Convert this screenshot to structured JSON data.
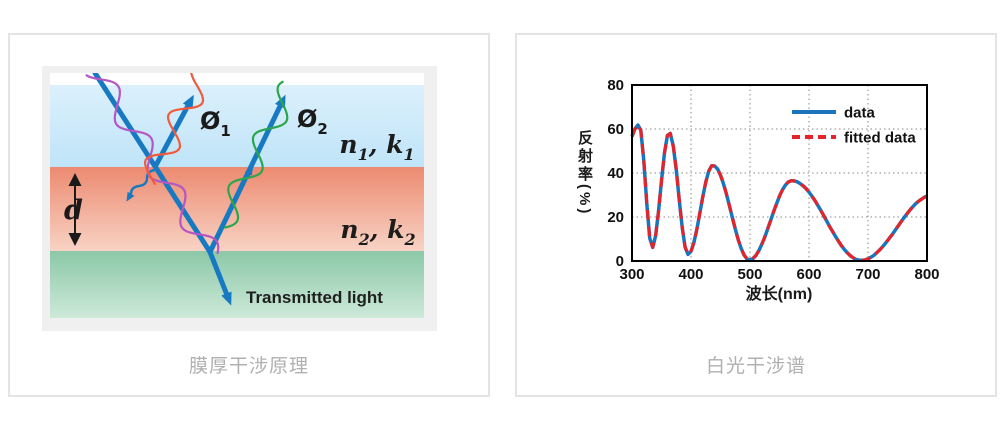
{
  "page": {
    "background": "#ffffff"
  },
  "left_panel": {
    "caption": "膜厚干涉原理",
    "diagram": {
      "phi1": {
        "base": "Ø",
        "sub": "1"
      },
      "phi2": {
        "base": "Ø",
        "sub": "2"
      },
      "layer1_label": {
        "p1": "n",
        "s1": "1",
        "p2": ", k",
        "s2": "1"
      },
      "layer2_label": {
        "p1": "n",
        "s1": "2",
        "p2": ", k",
        "s2": "2"
      },
      "thickness_label": "d",
      "transmitted_label": "Transmitted light",
      "colors": {
        "medium1_top": "#dcf0fc",
        "medium1_bottom": "#bfe4f8",
        "film_top": "#ec8a70",
        "film_bottom": "#f8d3c4",
        "substrate_top": "#8bc8a7",
        "substrate_bottom": "#cde9d9",
        "ray": "#1779c1",
        "wave_incident": "#b457c5",
        "wave_reflect1": "#f15b3b",
        "wave_reflect2": "#2aa64d"
      }
    }
  },
  "right_panel": {
    "caption": "白光干涉谱",
    "panel_bg": "#ece7ba"
  },
  "chart_data": {
    "type": "line",
    "title": "",
    "xlabel": "波长(nm)",
    "ylabel": "反射率(%)",
    "xlim": [
      300,
      800
    ],
    "ylim": [
      0,
      80
    ],
    "xticks": [
      300,
      400,
      500,
      600,
      700,
      800
    ],
    "yticks": [
      0,
      20,
      40,
      60,
      80
    ],
    "grid": true,
    "legend_position": "upper right",
    "x": [
      300,
      305,
      310,
      315,
      320,
      325,
      330,
      335,
      340,
      345,
      350,
      355,
      360,
      365,
      370,
      375,
      380,
      385,
      390,
      395,
      400,
      405,
      410,
      415,
      420,
      425,
      430,
      435,
      440,
      445,
      450,
      455,
      460,
      465,
      470,
      475,
      480,
      485,
      490,
      495,
      500,
      505,
      510,
      515,
      520,
      525,
      530,
      535,
      540,
      545,
      550,
      555,
      560,
      565,
      570,
      575,
      580,
      585,
      590,
      595,
      600,
      605,
      610,
      615,
      620,
      625,
      630,
      635,
      640,
      645,
      650,
      655,
      660,
      665,
      670,
      675,
      680,
      685,
      690,
      695,
      700,
      705,
      710,
      715,
      720,
      725,
      730,
      735,
      740,
      745,
      750,
      755,
      760,
      765,
      770,
      775,
      780,
      785,
      790,
      795,
      800
    ],
    "series": [
      {
        "name": "data",
        "color": "#1b75bc",
        "style": "solid",
        "values": [
          56.6,
          60.1,
          61.8,
          59.5,
          45.6,
          26.1,
          10.4,
          6.2,
          11.4,
          22.5,
          36.5,
          49.2,
          57.1,
          58.0,
          52.2,
          41.3,
          28.0,
          15.3,
          6.3,
          3.0,
          4.4,
          8.4,
          14.5,
          21.7,
          29.2,
          35.9,
          40.8,
          43.3,
          43.2,
          41.8,
          39.0,
          35.2,
          30.5,
          25.3,
          19.8,
          14.5,
          9.7,
          5.7,
          2.7,
          0.9,
          0.5,
          1.1,
          2.5,
          4.7,
          7.6,
          10.9,
          14.6,
          18.5,
          22.4,
          26.1,
          29.5,
          32.3,
          34.5,
          35.9,
          36.5,
          36.4,
          36.0,
          35.2,
          34.2,
          32.9,
          31.3,
          29.5,
          27.5,
          25.3,
          23.0,
          20.6,
          18.2,
          15.7,
          13.4,
          11.1,
          9.0,
          7.0,
          5.2,
          3.7,
          2.4,
          1.4,
          0.7,
          0.4,
          0.3,
          0.5,
          1.0,
          1.7,
          2.6,
          3.8,
          5.1,
          6.6,
          8.2,
          9.9,
          11.7,
          13.6,
          15.5,
          17.4,
          19.3,
          21.1,
          22.8,
          24.4,
          25.8,
          27.0,
          28.0,
          28.9,
          29.5
        ]
      },
      {
        "name": "fitted data",
        "color": "#e62329",
        "style": "dashed",
        "values": [
          56.6,
          60.1,
          61.8,
          59.5,
          45.6,
          26.1,
          10.4,
          6.2,
          11.4,
          22.5,
          36.5,
          49.2,
          57.1,
          58.0,
          52.2,
          41.3,
          28.0,
          15.3,
          6.3,
          3.0,
          4.4,
          8.4,
          14.5,
          21.7,
          29.2,
          35.9,
          40.8,
          43.3,
          43.2,
          41.8,
          39.0,
          35.2,
          30.5,
          25.3,
          19.8,
          14.5,
          9.7,
          5.7,
          2.7,
          0.9,
          0.5,
          1.1,
          2.5,
          4.7,
          7.6,
          10.9,
          14.6,
          18.5,
          22.4,
          26.1,
          29.5,
          32.3,
          34.5,
          35.9,
          36.5,
          36.4,
          36.0,
          35.2,
          34.2,
          32.9,
          31.3,
          29.5,
          27.5,
          25.3,
          23.0,
          20.6,
          18.2,
          15.7,
          13.4,
          11.1,
          9.0,
          7.0,
          5.2,
          3.7,
          2.4,
          1.4,
          0.7,
          0.4,
          0.3,
          0.5,
          1.0,
          1.7,
          2.6,
          3.8,
          5.1,
          6.6,
          8.2,
          9.9,
          11.7,
          13.6,
          15.5,
          17.4,
          19.3,
          21.1,
          22.8,
          24.4,
          25.8,
          27.0,
          28.0,
          28.9,
          29.5
        ]
      }
    ]
  }
}
